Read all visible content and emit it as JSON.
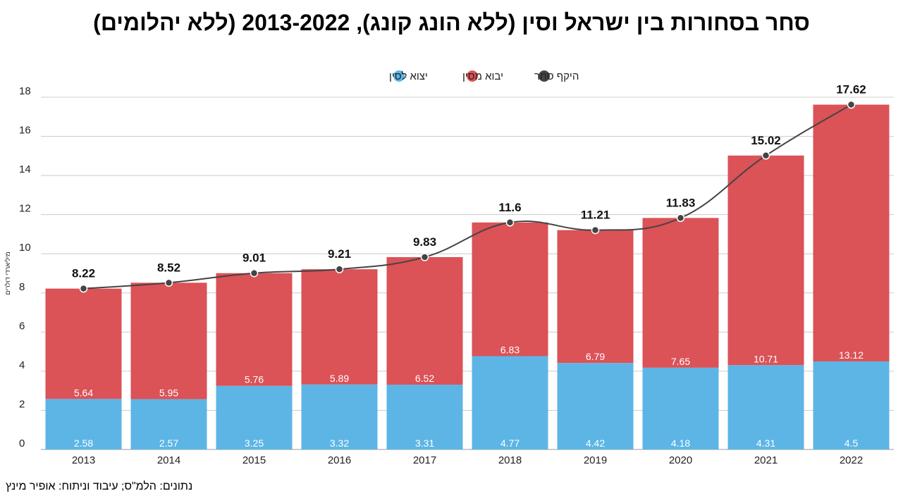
{
  "title": "סחר בסחורות בין ישראל וסין (ללא הונג קונג), 2013-2022 (ללא יהלומים)",
  "source": "נתונים: הלמ\"ס; עיבוד וניתוח: אופיר מינץ",
  "chart_data": {
    "type": "bar",
    "stacked": true,
    "title": "סחר בסחורות בין ישראל וסין (ללא הונג קונג), 2013-2022 (ללא יהלומים)",
    "ylabel": "מיליארדי דולרים",
    "xlabel": "",
    "ylim": [
      0,
      18
    ],
    "yticks": [
      0,
      2,
      4,
      6,
      8,
      10,
      12,
      14,
      16,
      18
    ],
    "grid": true,
    "legend_position": "top",
    "categories": [
      "2013",
      "2014",
      "2015",
      "2016",
      "2017",
      "2018",
      "2019",
      "2020",
      "2021",
      "2022"
    ],
    "series": [
      {
        "name": "יצוא לסין",
        "kind": "bar",
        "color": "#5DB5E6",
        "values": [
          2.58,
          2.57,
          3.25,
          3.32,
          3.31,
          4.77,
          4.42,
          4.18,
          4.31,
          4.5
        ]
      },
      {
        "name": "יבוא מסין",
        "kind": "bar",
        "color": "#DB5257",
        "values": [
          5.64,
          5.95,
          5.76,
          5.89,
          6.52,
          6.83,
          6.79,
          7.65,
          10.71,
          13.12
        ]
      },
      {
        "name": "היקף סחר",
        "kind": "line",
        "color": "#444444",
        "values": [
          8.22,
          8.52,
          9.01,
          9.21,
          9.83,
          11.6,
          11.21,
          11.83,
          15.02,
          17.62
        ]
      }
    ]
  }
}
